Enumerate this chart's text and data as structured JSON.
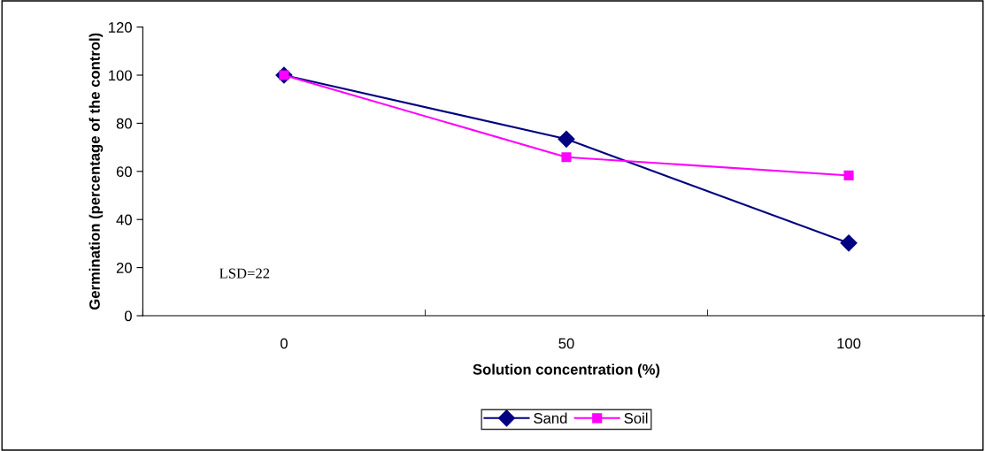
{
  "chart_data": {
    "type": "line",
    "xlabel": "Solution concentration (%)",
    "ylabel": "Germination (percentage of the control)",
    "categories": [
      "0",
      "50",
      "100"
    ],
    "series": [
      {
        "name": "Sand",
        "color": "#000080",
        "values": [
          100,
          73.4,
          30.2
        ],
        "marker": "diamond"
      },
      {
        "name": "Soil",
        "color": "#ff00ff",
        "values": [
          100,
          65.9,
          58.3
        ],
        "marker": "square"
      }
    ],
    "ylim": [
      0,
      120
    ],
    "yticks": [
      0,
      20,
      40,
      60,
      80,
      100,
      120
    ],
    "grid": false,
    "legend": "bottom",
    "annotations": [
      "LSD=22"
    ]
  }
}
